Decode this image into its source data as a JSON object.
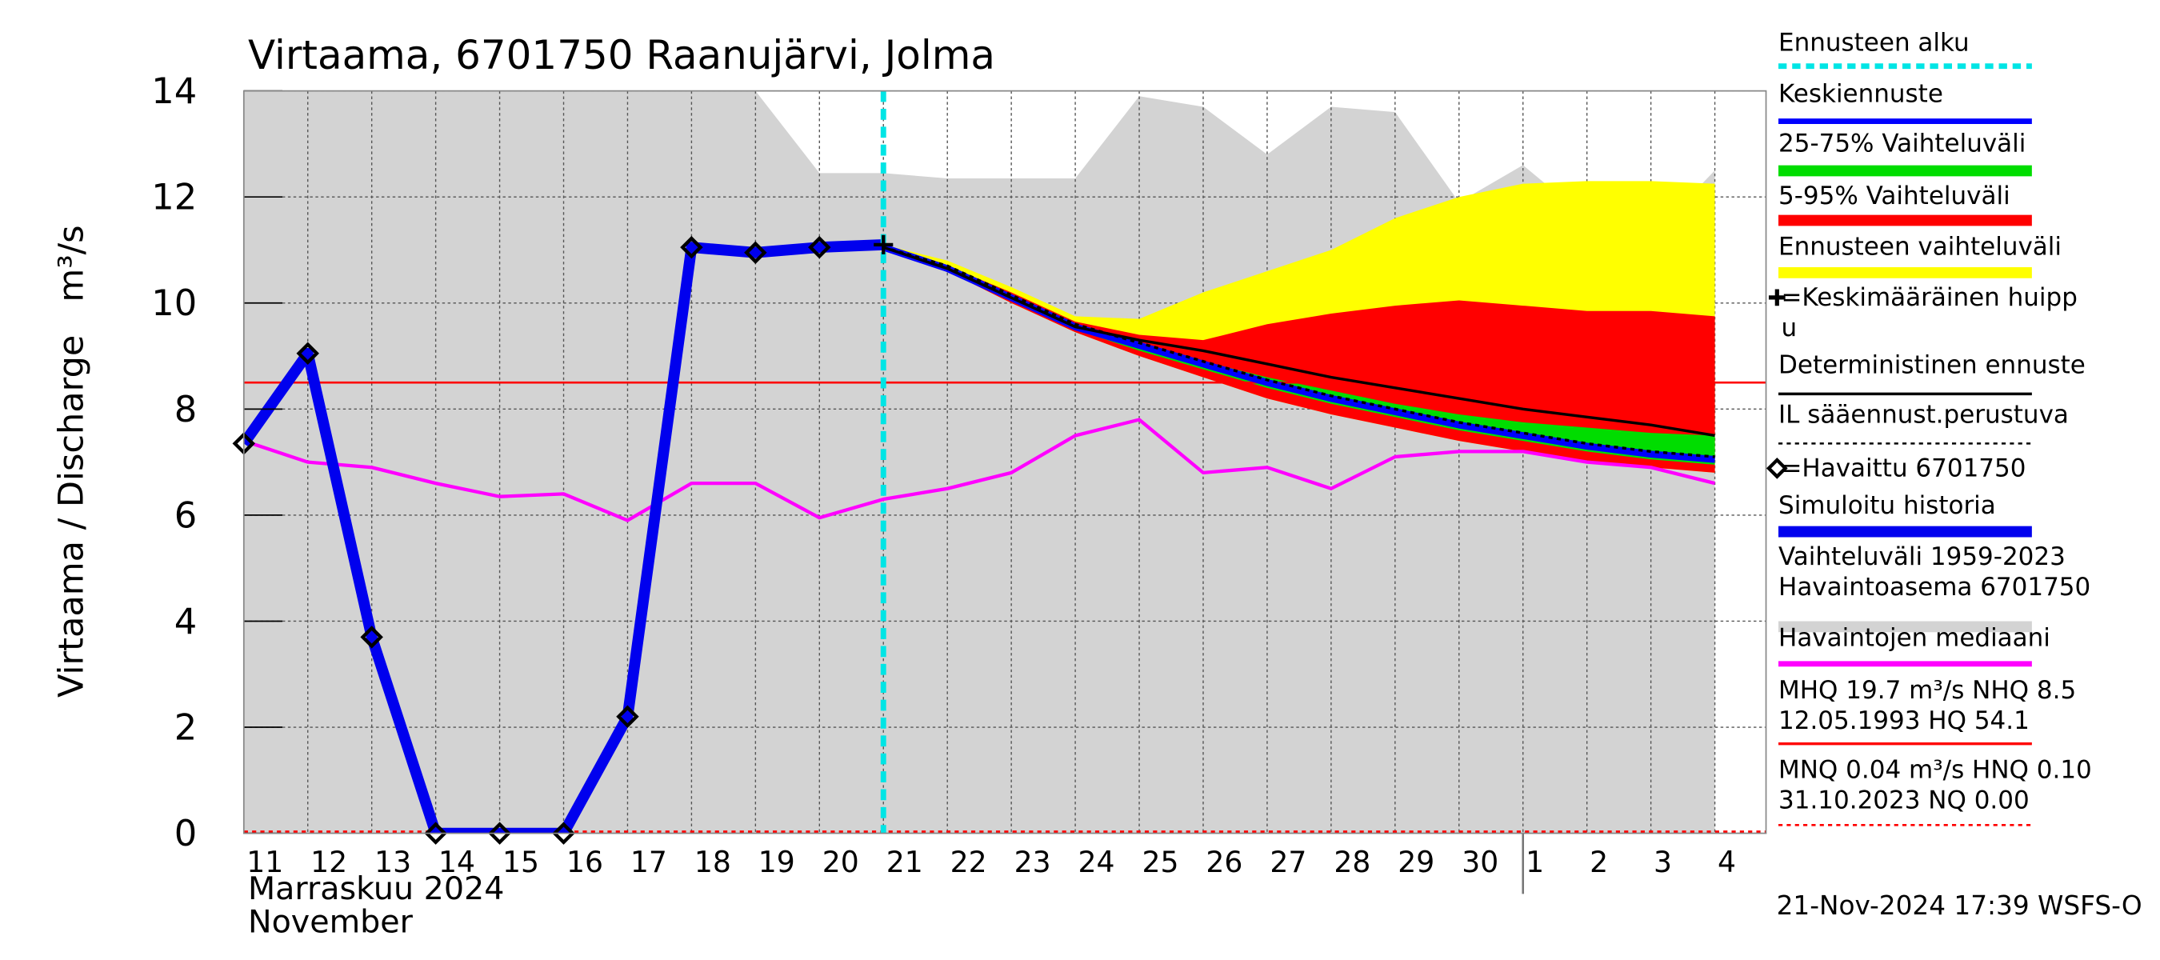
{
  "chart_data": {
    "type": "line",
    "title": "Virtaama, 6701750 Raanujärvi, Jolma",
    "y_label": "Virtaama / Discharge   m³/s",
    "x_label": [
      "Marraskuu 2024",
      "November"
    ],
    "footer": "21-Nov-2024 17:39 WSFS-O",
    "categories": [
      "11",
      "12",
      "13",
      "14",
      "15",
      "16",
      "17",
      "18",
      "19",
      "20",
      "21",
      "22",
      "23",
      "24",
      "25",
      "26",
      "27",
      "28",
      "29",
      "30",
      "1",
      "2",
      "3",
      "4"
    ],
    "xlim": [
      0,
      23.8
    ],
    "ylim": [
      0,
      14
    ],
    "yticks": [
      0,
      2,
      4,
      6,
      8,
      10,
      12,
      14
    ],
    "grid": true,
    "forecast_start": 10,
    "month_break": 20,
    "nhq_line": 8.5,
    "nq_line": 0,
    "range_area": {
      "name": "Vaihteluväli 1959-2023",
      "color": "#d3d3d3",
      "values": [
        14,
        14,
        14,
        14,
        14,
        14,
        14,
        14,
        14,
        12.45,
        12.45,
        12.35,
        12.35,
        12.35,
        13.9,
        13.7,
        12.8,
        13.7,
        13.6,
        11.9,
        12.6,
        11.6,
        11.25,
        12.5
      ]
    },
    "bands": [
      {
        "name": "Ennusteen vaihteluväli",
        "color": "#ffff00",
        "upper": [
          null,
          null,
          null,
          null,
          null,
          null,
          null,
          null,
          null,
          null,
          11.1,
          10.8,
          10.3,
          9.75,
          9.7,
          10.2,
          10.6,
          11.0,
          11.6,
          12.0,
          12.25,
          12.3,
          12.3,
          12.25
        ],
        "lower": [
          null,
          null,
          null,
          null,
          null,
          null,
          null,
          null,
          null,
          null,
          11.05,
          10.6,
          10.0,
          9.45,
          9.0,
          8.6,
          8.2,
          7.9,
          7.65,
          7.4,
          7.2,
          7.0,
          6.9,
          6.8
        ]
      },
      {
        "name": "5-95% Vaihteluväli",
        "color": "#ff0000",
        "upper": [
          null,
          null,
          null,
          null,
          null,
          null,
          null,
          null,
          null,
          null,
          11.05,
          10.7,
          10.2,
          9.65,
          9.4,
          9.3,
          9.6,
          9.8,
          9.95,
          10.05,
          9.95,
          9.85,
          9.85,
          9.75
        ],
        "lower": [
          null,
          null,
          null,
          null,
          null,
          null,
          null,
          null,
          null,
          null,
          11.05,
          10.6,
          10.0,
          9.45,
          9.0,
          8.6,
          8.2,
          7.9,
          7.65,
          7.4,
          7.2,
          7.0,
          6.9,
          6.8
        ]
      },
      {
        "name": "25-75% Vaihteluväli",
        "color": "#00dd00",
        "upper": [
          null,
          null,
          null,
          null,
          null,
          null,
          null,
          null,
          null,
          null,
          11.05,
          10.65,
          10.1,
          9.55,
          9.2,
          8.9,
          8.6,
          8.35,
          8.1,
          7.9,
          7.75,
          7.65,
          7.55,
          7.5
        ],
        "lower": [
          null,
          null,
          null,
          null,
          null,
          null,
          null,
          null,
          null,
          null,
          11.05,
          10.6,
          10.05,
          9.5,
          9.1,
          8.75,
          8.4,
          8.1,
          7.85,
          7.6,
          7.4,
          7.2,
          7.05,
          6.95
        ]
      }
    ],
    "series": [
      {
        "name": "Havaintojen mediaani",
        "color": "#ff00ff",
        "width": 2.5,
        "values": [
          7.4,
          7.0,
          6.9,
          6.6,
          6.35,
          6.4,
          5.9,
          6.6,
          6.6,
          5.95,
          6.3,
          6.5,
          6.8,
          7.5,
          7.8,
          6.8,
          6.9,
          6.5,
          7.1,
          7.2,
          7.2,
          7.0,
          6.9,
          6.6
        ]
      },
      {
        "name": "Simuloitu historia",
        "color": "#0000ee",
        "width": 8,
        "values": [
          7.35,
          9.05,
          3.7,
          0,
          0,
          0,
          2.2,
          11.05,
          10.95,
          11.05,
          11.1,
          null,
          null,
          null,
          null,
          null,
          null,
          null,
          null,
          null,
          null,
          null,
          null,
          null
        ]
      },
      {
        "name": "Keskiennuste",
        "color": "#0000ff",
        "width": 5,
        "values": [
          null,
          null,
          null,
          null,
          null,
          null,
          null,
          null,
          null,
          null,
          11.05,
          10.65,
          10.1,
          9.55,
          9.2,
          8.85,
          8.5,
          8.2,
          7.95,
          7.7,
          7.5,
          7.3,
          7.15,
          7.05
        ]
      },
      {
        "name": "Deterministinen ennuste",
        "color": "#000000",
        "width": 2,
        "values": [
          null,
          null,
          null,
          null,
          null,
          null,
          null,
          null,
          null,
          null,
          11.05,
          10.65,
          10.1,
          9.55,
          9.3,
          9.1,
          8.85,
          8.6,
          8.4,
          8.2,
          8.0,
          7.85,
          7.7,
          7.5
        ]
      },
      {
        "name": "IL sääennust.perustuva",
        "color": "#000000",
        "width": 2,
        "dash": true,
        "values": [
          null,
          null,
          null,
          null,
          null,
          null,
          null,
          null,
          null,
          null,
          11.05,
          10.7,
          10.15,
          9.6,
          9.25,
          8.9,
          8.55,
          8.25,
          8.0,
          7.75,
          7.55,
          7.35,
          7.2,
          7.1
        ]
      }
    ],
    "observed": {
      "name": "=Havaittu 6701750",
      "values": [
        7.35,
        9.05,
        3.7,
        0,
        0,
        0,
        2.2,
        11.05,
        10.95,
        11.05
      ]
    },
    "peak": {
      "name": "=Keskimääräinen huippu",
      "index": 10,
      "value": 11.1
    },
    "legend": [
      {
        "text": [
          "Ennusteen alku"
        ],
        "color": "#00e5e5",
        "style": "dash"
      },
      {
        "text": [
          "Keskiennuste"
        ],
        "color": "#0000ff",
        "style": "line"
      },
      {
        "text": [
          "25-75% Vaihteluväli"
        ],
        "color": "#00dd00",
        "style": "thick"
      },
      {
        "text": [
          "5-95% Vaihteluväli"
        ],
        "color": "#ff0000",
        "style": "thick"
      },
      {
        "text": [
          "Ennusteen vaihteluväli"
        ],
        "color": "#ffff00",
        "style": "thick"
      },
      {
        "text": [
          "=Keskimääräinen huipp",
          "u"
        ],
        "color": "#000000",
        "style": "plus"
      },
      {
        "text": [
          "Deterministinen ennuste"
        ],
        "color": "#000000",
        "style": "thin"
      },
      {
        "text": [
          "IL sääennust.perustuva"
        ],
        "color": "#000000",
        "style": "dashthin"
      },
      {
        "text": [
          "=Havaittu 6701750"
        ],
        "color": "#000000",
        "style": "diamond"
      },
      {
        "text": [
          "Simuloitu historia"
        ],
        "color": "#0000ee",
        "style": "thick"
      },
      {
        "text": [
          "Vaihteluväli 1959-2023",
          " Havaintoasema 6701750"
        ],
        "color": "#d3d3d3",
        "style": "thick"
      },
      {
        "text": [
          "Havaintojen mediaani"
        ],
        "color": "#ff00ff",
        "style": "line"
      },
      {
        "text": [
          "MHQ 19.7 m³/s NHQ  8.5",
          "12.05.1993 HQ 54.1"
        ],
        "color": "#ff0000",
        "style": "thin"
      },
      {
        "text": [
          "MNQ 0.04 m³/s HNQ 0.10",
          "31.10.2023 NQ 0.00"
        ],
        "color": "#ff0000",
        "style": "dashthin"
      }
    ]
  }
}
